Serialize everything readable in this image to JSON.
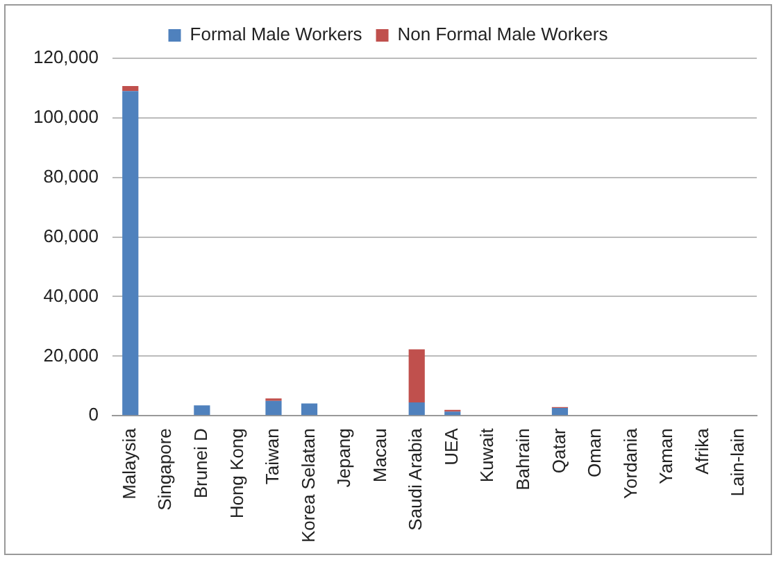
{
  "chart_data": {
    "type": "bar",
    "stacked": true,
    "categories": [
      "Malaysia",
      "Singapore",
      "Brunei D",
      "Hong Kong",
      "Taiwan",
      "Korea Selatan",
      "Jepang",
      "Macau",
      "Saudi Arabia",
      "UEA",
      "Kuwait",
      "Bahrain",
      "Qatar",
      "Oman",
      "Yordania",
      "Yaman",
      "Afrika",
      "Lain-lain"
    ],
    "series": [
      {
        "name": "Formal Male Workers",
        "color": "#4f81bd",
        "values": [
          109000,
          0,
          3500,
          0,
          5000,
          4100,
          0,
          0,
          4500,
          1400,
          0,
          0,
          2600,
          0,
          0,
          0,
          0,
          0
        ]
      },
      {
        "name": "Non Formal Male Workers",
        "color": "#c0504d",
        "values": [
          1700,
          0,
          0,
          0,
          800,
          0,
          0,
          0,
          17800,
          600,
          0,
          0,
          300,
          0,
          0,
          0,
          0,
          0
        ]
      }
    ],
    "ylim": [
      0,
      120000
    ],
    "yticks": [
      0,
      {
        "value": 20000,
        "label": "20,000"
      },
      {
        "value": 40000,
        "label": "40,000"
      },
      {
        "value": 60000,
        "label": "60,000"
      },
      {
        "value": 80000,
        "label": "80,000"
      },
      {
        "value": 100000,
        "label": "100,000"
      },
      {
        "value": 120000,
        "label": "120,000"
      }
    ],
    "grid": "y",
    "legend": "top"
  }
}
